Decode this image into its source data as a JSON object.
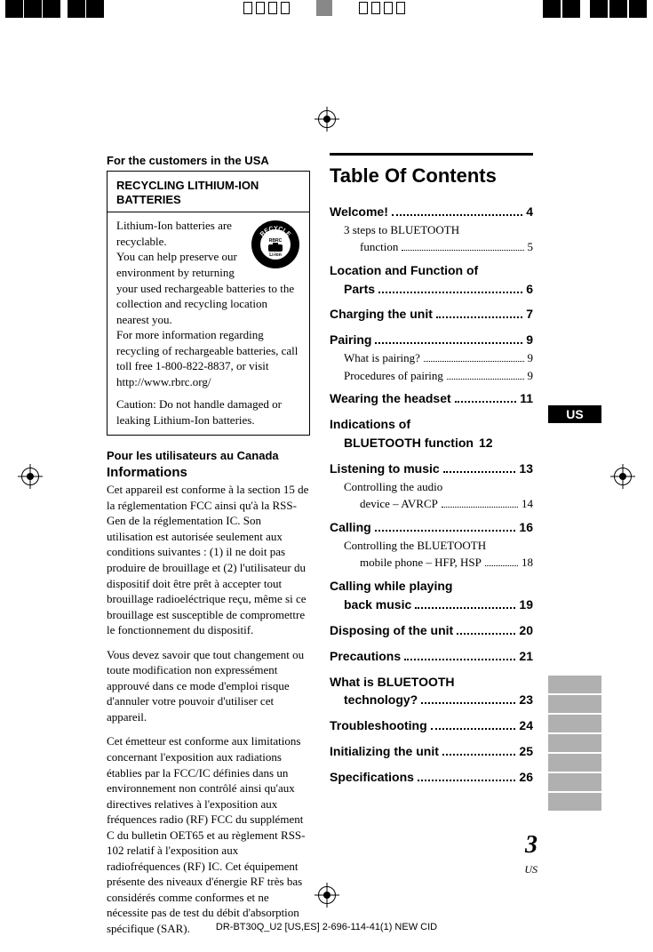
{
  "left": {
    "usa_heading": "For the customers in the USA",
    "box_title": "RECYCLING LITHIUM-ION BATTERIES",
    "box_body": "Lithium-Ion batteries are recyclable.\nYou can help preserve our environment by returning your used rechargeable batteries to the collection and recycling location nearest you.\nFor more information regarding recycling of rechargeable batteries, call toll free 1-800-822-8837, or visit http://www.rbrc.org/",
    "box_caution": "Caution: Do not handle damaged or leaking Lithium-Ion batteries.",
    "canada_heading": "Pour les utilisateurs au Canada",
    "canada_sub": "Informations",
    "para1": "Cet appareil est conforme à la section 15 de la réglementation FCC ainsi qu'à la RSS-Gen de la réglementation IC. Son utilisation est autorisée seulement aux conditions suivantes : (1) il ne doit pas produire de brouillage et (2) l'utilisateur du dispositif doit être prêt à accepter tout brouillage radioeléctrique reçu, même si ce brouillage est susceptible de compromettre le fonctionnement du dispositif.",
    "para2": "Vous devez savoir que tout changement ou toute modification non expressément approuvé dans ce mode d'emploi risque d'annuler votre pouvoir d'utiliser cet appareil.",
    "para3": "Cet émetteur est conforme aux limitations concernant l'exposition aux radiations établies par la FCC/IC définies dans un environnement non contrôlé ainsi qu'aux directives relatives à l'exposition aux fréquences radio (RF) FCC du supplément C du bulletin OET65 et au règlement RSS-102 relatif à l'exposition aux radiofréquences (RF) IC. Cet équipement présente des niveaux d'énergie RF très bas considérés comme conformes et ne nécessite pas de test du débit d'absorption spécifique (SAR)."
  },
  "right": {
    "title": "Table Of Contents",
    "toc": [
      {
        "t": "Welcome!",
        "p": "4",
        "sub": false
      },
      {
        "t": "3 steps to BLUETOOTH\nfunction",
        "p": "5",
        "sub": true
      },
      {
        "t": "Location and Function of\nParts",
        "p": "6",
        "sub": false
      },
      {
        "t": "Charging the unit",
        "p": "7",
        "sub": false
      },
      {
        "t": "Pairing",
        "p": "9",
        "sub": false
      },
      {
        "t": "What is pairing?",
        "p": "9",
        "sub": true
      },
      {
        "t": "Procedures of pairing",
        "p": "9",
        "sub": true
      },
      {
        "t": "Wearing the headset",
        "p": "11",
        "sub": false
      },
      {
        "t": "Indications of\nBLUETOOTH function",
        "p": "12",
        "sub": false,
        "nodots": true
      },
      {
        "t": "Listening to music",
        "p": "13",
        "sub": false
      },
      {
        "t": "Controlling the audio\ndevice – AVRCP",
        "p": "14",
        "sub": true
      },
      {
        "t": "Calling",
        "p": "16",
        "sub": false
      },
      {
        "t": "Controlling the BLUETOOTH\nmobile phone – HFP, HSP",
        "p": "18",
        "sub": true,
        "tight": true
      },
      {
        "t": "Calling while playing\nback music",
        "p": "19",
        "sub": false
      },
      {
        "t": "Disposing of the unit",
        "p": "20",
        "sub": false
      },
      {
        "t": "Precautions",
        "p": "21",
        "sub": false
      },
      {
        "t": "What is BLUETOOTH\ntechnology?",
        "p": "23",
        "sub": false
      },
      {
        "t": "Troubleshooting",
        "p": "24",
        "sub": false
      },
      {
        "t": "Initializing the unit",
        "p": "25",
        "sub": false
      },
      {
        "t": "Specifications",
        "p": "26",
        "sub": false
      }
    ]
  },
  "sidebar": {
    "us_label": "US"
  },
  "pagenum": {
    "num": "3",
    "region": "US"
  },
  "footer": "DR-BT30Q_U2 [US,ES] 2-696-114-41(1) NEW CID",
  "recycle_logo": {
    "top_text": "RECYCLE",
    "inner1": "RBRC",
    "inner2": "Li-Ion",
    "phone": "1.800.822.8837"
  }
}
